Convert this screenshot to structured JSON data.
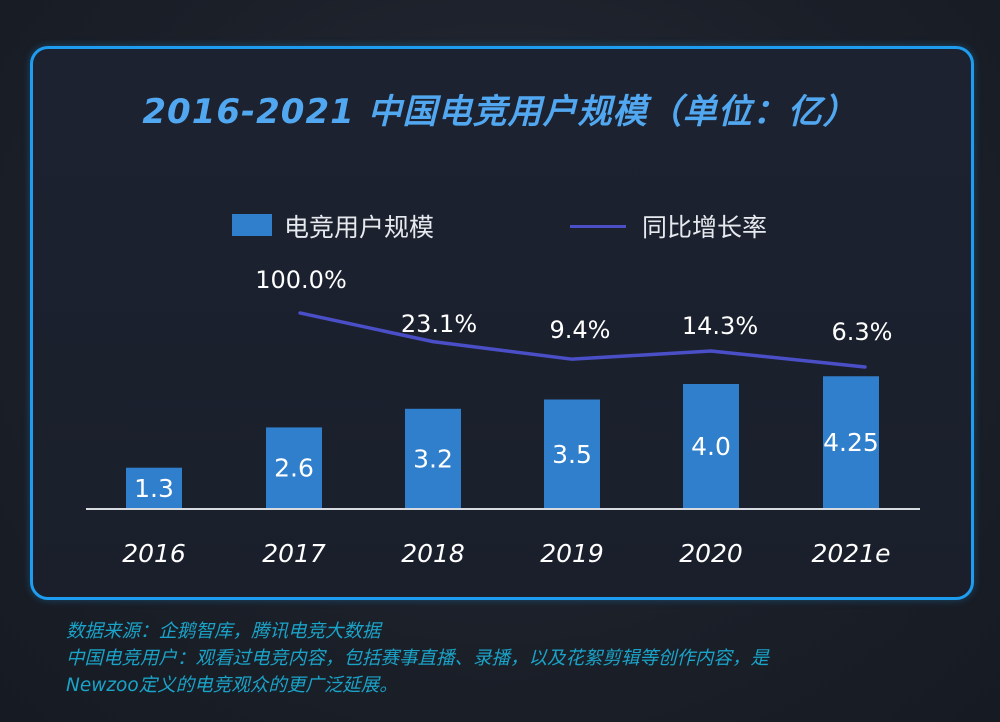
{
  "title": "2016-2021 中国电竞用户规模（单位：亿）",
  "legend": {
    "bar_label": "电竞用户规模",
    "line_label": "同比增长率"
  },
  "colors": {
    "bar": "#2f7fcc",
    "line": "#4a4fc8",
    "frame": "#1e9df0",
    "title": "#52a8f0",
    "footer": "#1aa3c8"
  },
  "chart_data": {
    "type": "bar",
    "title": "2016-2021 中国电竞用户规模（单位：亿）",
    "categories": [
      "2016",
      "2017",
      "2018",
      "2019",
      "2020",
      "2021e"
    ],
    "series": [
      {
        "name": "电竞用户规模",
        "type": "bar",
        "values": [
          1.3,
          2.6,
          3.2,
          3.5,
          4.0,
          4.25
        ],
        "labels": [
          "1.3",
          "2.6",
          "3.2",
          "3.5",
          "4.0",
          "4.25"
        ]
      },
      {
        "name": "同比增长率",
        "type": "line",
        "values": [
          null,
          100.0,
          23.1,
          9.4,
          14.3,
          6.3
        ],
        "labels": [
          "",
          "100.0%",
          "23.1%",
          "9.4%",
          "14.3%",
          "6.3%"
        ]
      }
    ],
    "ylim": [
      0,
      5
    ],
    "grid": false,
    "legend_position": "top-center"
  },
  "footer": {
    "line1": "数据来源：企鹅智库，腾讯电竞大数据",
    "line2": "中国电竞用户：观看过电竞内容，包括赛事直播、录播，以及花絮剪辑等创作内容，是",
    "line3": "Newzoo定义的电竞观众的更广泛延展。"
  }
}
